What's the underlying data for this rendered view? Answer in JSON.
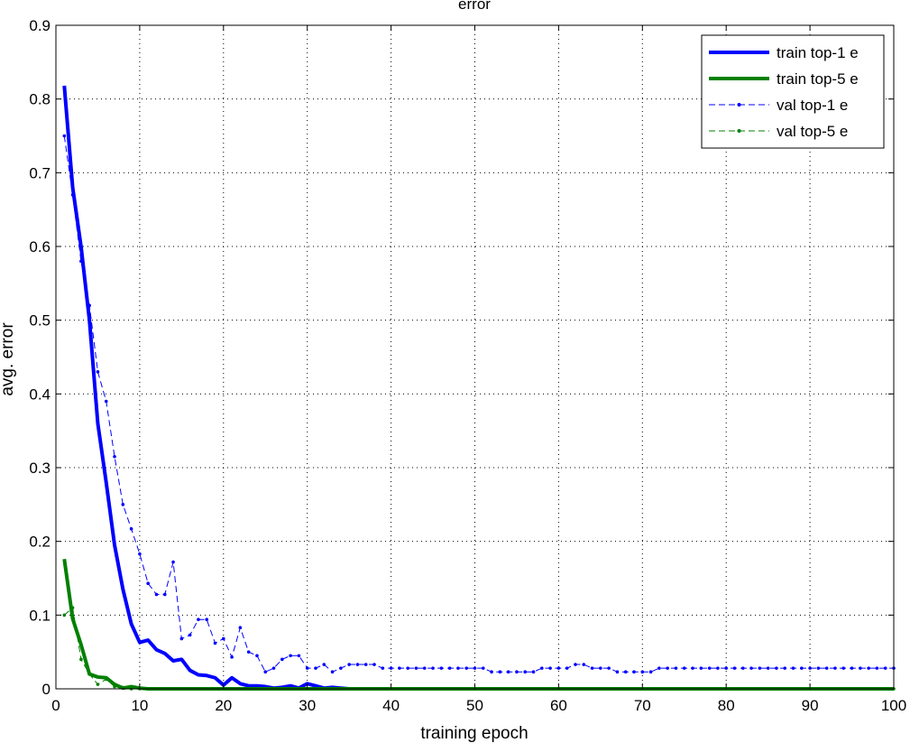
{
  "chart_data": {
    "type": "line",
    "title": "error",
    "xlabel": "training epoch",
    "ylabel": "avg. error",
    "xlim": [
      0,
      100
    ],
    "ylim": [
      0,
      0.9
    ],
    "xticks": [
      "0",
      "10",
      "20",
      "30",
      "40",
      "50",
      "60",
      "70",
      "80",
      "90",
      "100"
    ],
    "yticks": [
      "0",
      "0.1",
      "0.2",
      "0.3",
      "0.4",
      "0.5",
      "0.6",
      "0.7",
      "0.8",
      "0.9"
    ],
    "grid": true,
    "legend_position": "top-right",
    "x": [
      1,
      2,
      3,
      4,
      5,
      6,
      7,
      8,
      9,
      10,
      11,
      12,
      13,
      14,
      15,
      16,
      17,
      18,
      19,
      20,
      21,
      22,
      23,
      24,
      25,
      26,
      27,
      28,
      29,
      30,
      31,
      32,
      33,
      34,
      35,
      36,
      37,
      38,
      39,
      40,
      41,
      42,
      43,
      44,
      45,
      46,
      47,
      48,
      49,
      50,
      51,
      52,
      53,
      54,
      55,
      56,
      57,
      58,
      59,
      60,
      61,
      62,
      63,
      64,
      65,
      66,
      67,
      68,
      69,
      70,
      71,
      72,
      73,
      74,
      75,
      76,
      77,
      78,
      79,
      80,
      81,
      82,
      83,
      84,
      85,
      86,
      87,
      88,
      89,
      90,
      91,
      92,
      93,
      94,
      95,
      96,
      97,
      98,
      99,
      100
    ],
    "series": [
      {
        "name": "train top-1 e",
        "color": "#0000ff",
        "style": "solid-thick",
        "values": [
          0.818,
          0.68,
          0.6,
          0.5,
          0.36,
          0.28,
          0.195,
          0.135,
          0.088,
          0.063,
          0.066,
          0.053,
          0.048,
          0.038,
          0.04,
          0.025,
          0.019,
          0.018,
          0.015,
          0.005,
          0.015,
          0.007,
          0.004,
          0.004,
          0.003,
          0.001,
          0.002,
          0.004,
          0.001,
          0.007,
          0.004,
          0.001,
          0.002,
          0.001,
          0,
          0,
          0,
          0,
          0,
          0,
          0,
          0,
          0,
          0,
          0,
          0,
          0,
          0,
          0,
          0,
          0,
          0,
          0,
          0,
          0,
          0,
          0,
          0,
          0,
          0,
          0,
          0,
          0,
          0,
          0,
          0,
          0,
          0,
          0,
          0,
          0,
          0,
          0,
          0,
          0,
          0,
          0,
          0,
          0,
          0,
          0,
          0,
          0,
          0,
          0,
          0,
          0,
          0,
          0,
          0,
          0,
          0,
          0,
          0,
          0,
          0,
          0,
          0,
          0,
          0
        ]
      },
      {
        "name": "train top-5 e",
        "color": "#008000",
        "style": "solid-thick",
        "values": [
          0.176,
          0.095,
          0.06,
          0.02,
          0.016,
          0.015,
          0.006,
          0.001,
          0.003,
          0.001,
          0,
          0,
          0,
          0,
          0,
          0,
          0,
          0,
          0,
          0,
          0,
          0,
          0,
          0,
          0,
          0,
          0,
          0,
          0,
          0,
          0,
          0,
          0,
          0,
          0,
          0,
          0,
          0,
          0,
          0,
          0,
          0,
          0,
          0,
          0,
          0,
          0,
          0,
          0,
          0,
          0,
          0,
          0,
          0,
          0,
          0,
          0,
          0,
          0,
          0,
          0,
          0,
          0,
          0,
          0,
          0,
          0,
          0,
          0,
          0,
          0,
          0,
          0,
          0,
          0,
          0,
          0,
          0,
          0,
          0,
          0,
          0,
          0,
          0,
          0,
          0,
          0,
          0,
          0,
          0,
          0,
          0,
          0,
          0,
          0,
          0,
          0,
          0,
          0,
          0
        ]
      },
      {
        "name": "val top-1 e",
        "color": "#0000ff",
        "style": "dashed-dots",
        "values": [
          0.75,
          0.67,
          0.58,
          0.52,
          0.43,
          0.39,
          0.315,
          0.25,
          0.217,
          0.183,
          0.143,
          0.128,
          0.128,
          0.172,
          0.068,
          0.073,
          0.094,
          0.094,
          0.062,
          0.068,
          0.043,
          0.083,
          0.05,
          0.045,
          0.023,
          0.028,
          0.04,
          0.045,
          0.045,
          0.028,
          0.028,
          0.033,
          0.023,
          0.028,
          0.033,
          0.033,
          0.033,
          0.033,
          0.028,
          0.028,
          0.028,
          0.028,
          0.028,
          0.028,
          0.028,
          0.028,
          0.028,
          0.028,
          0.028,
          0.028,
          0.028,
          0.023,
          0.023,
          0.023,
          0.023,
          0.023,
          0.023,
          0.028,
          0.028,
          0.028,
          0.028,
          0.033,
          0.033,
          0.028,
          0.028,
          0.028,
          0.023,
          0.023,
          0.023,
          0.023,
          0.023,
          0.028,
          0.028,
          0.028,
          0.028,
          0.028,
          0.028,
          0.028,
          0.028,
          0.028,
          0.028,
          0.028,
          0.028,
          0.028,
          0.028,
          0.028,
          0.028,
          0.028,
          0.028,
          0.028,
          0.028,
          0.028,
          0.028,
          0.028,
          0.028,
          0.028,
          0.028,
          0.028,
          0.028,
          0.028
        ]
      },
      {
        "name": "val top-5 e",
        "color": "#008000",
        "style": "dashed-dots",
        "values": [
          0.1,
          0.11,
          0.04,
          0.02,
          0.006,
          0.013,
          0.003,
          0.002,
          0,
          0,
          0,
          0,
          0,
          0,
          0,
          0,
          0,
          0,
          0,
          0,
          0,
          0,
          0,
          0,
          0,
          0,
          0,
          0,
          0,
          0,
          0,
          0,
          0,
          0,
          0,
          0,
          0,
          0,
          0,
          0,
          0,
          0,
          0,
          0,
          0,
          0,
          0,
          0,
          0,
          0,
          0,
          0,
          0,
          0,
          0,
          0,
          0,
          0,
          0,
          0,
          0,
          0,
          0,
          0,
          0,
          0,
          0,
          0,
          0,
          0,
          0,
          0,
          0,
          0,
          0,
          0,
          0,
          0,
          0,
          0,
          0,
          0,
          0,
          0,
          0,
          0,
          0,
          0,
          0,
          0,
          0,
          0,
          0,
          0,
          0,
          0,
          0,
          0,
          0,
          0
        ]
      }
    ]
  }
}
